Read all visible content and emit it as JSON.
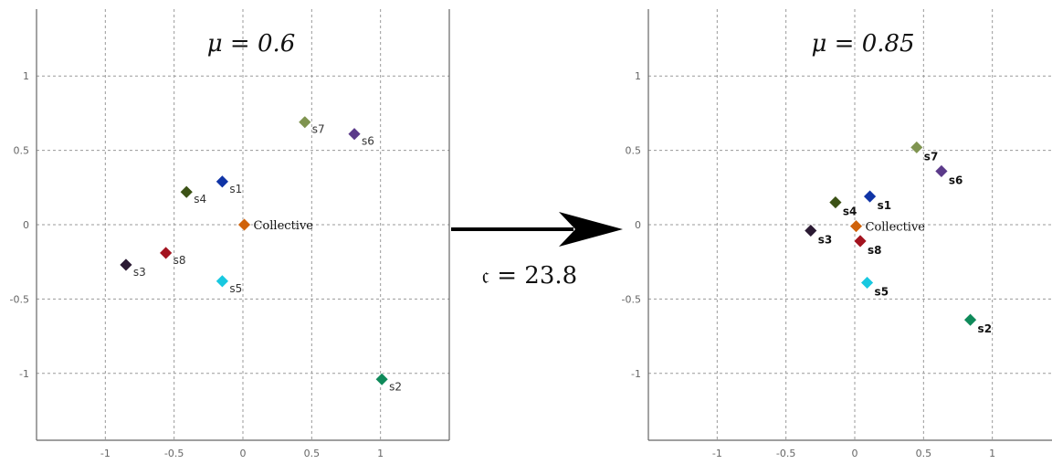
{
  "chart_data": [
    {
      "type": "scatter",
      "title": "μ = 0.6",
      "xlabel": "",
      "ylabel": "",
      "xlim": [
        -1.5,
        1.5
      ],
      "ylim": [
        -1.45,
        1.45
      ],
      "x_ticks": [
        -1,
        -0.5,
        0,
        0.5,
        1
      ],
      "y_ticks": [
        1,
        0.5,
        0,
        -0.5,
        -1
      ],
      "x_tick_labels": [
        "-1",
        "-0.5",
        "0",
        "0.5",
        "1"
      ],
      "y_tick_labels": [
        "1",
        "0.5",
        "0",
        "-0.5",
        "-1"
      ],
      "grid": true,
      "points": [
        {
          "label": "s1",
          "x": -0.15,
          "y": 0.29,
          "color": "#1034a6"
        },
        {
          "label": "s2",
          "x": 1.01,
          "y": -1.04,
          "color": "#0f8a5a"
        },
        {
          "label": "s3",
          "x": -0.85,
          "y": -0.27,
          "color": "#2b1a33"
        },
        {
          "label": "s4",
          "x": -0.41,
          "y": 0.22,
          "color": "#3c5216"
        },
        {
          "label": "s5",
          "x": -0.15,
          "y": -0.38,
          "color": "#18c8e0"
        },
        {
          "label": "s6",
          "x": 0.81,
          "y": 0.61,
          "color": "#5b3a8a"
        },
        {
          "label": "s7",
          "x": 0.45,
          "y": 0.69,
          "color": "#7f9450"
        },
        {
          "label": "s8",
          "x": -0.56,
          "y": -0.19,
          "color": "#a3131f"
        },
        {
          "label": "Collective",
          "x": 0.01,
          "y": 0.0,
          "color": "#d0620a"
        }
      ]
    },
    {
      "type": "scatter",
      "title": "μ = 0.85",
      "xlabel": "",
      "ylabel": "",
      "xlim": [
        -1.5,
        1.5
      ],
      "ylim": [
        -1.45,
        1.45
      ],
      "x_ticks": [
        -1,
        -0.5,
        0,
        0.5,
        1
      ],
      "y_ticks": [
        1,
        0.5,
        0,
        -0.5,
        -1
      ],
      "x_tick_labels": [
        "-1",
        "-0.5",
        "0",
        "0.5",
        "1"
      ],
      "y_tick_labels": [
        "1",
        "0.5",
        "0",
        "-0.5",
        "-1"
      ],
      "grid": true,
      "points": [
        {
          "label": "s1",
          "x": 0.11,
          "y": 0.19,
          "color": "#1034a6"
        },
        {
          "label": "s2",
          "x": 0.84,
          "y": -0.64,
          "color": "#0f8a5a"
        },
        {
          "label": "s3",
          "x": -0.32,
          "y": -0.04,
          "color": "#2b1a33"
        },
        {
          "label": "s4",
          "x": -0.14,
          "y": 0.15,
          "color": "#3c5216"
        },
        {
          "label": "s5",
          "x": 0.09,
          "y": -0.39,
          "color": "#18c8e0"
        },
        {
          "label": "s6",
          "x": 0.63,
          "y": 0.36,
          "color": "#5b3a8a"
        },
        {
          "label": "s7",
          "x": 0.45,
          "y": 0.52,
          "color": "#7f9450"
        },
        {
          "label": "s8",
          "x": 0.04,
          "y": -0.11,
          "color": "#a3131f"
        },
        {
          "label": "Collective",
          "x": 0.01,
          "y": -0.01,
          "color": "#d0620a"
        }
      ]
    }
  ],
  "transition": {
    "label": "𝔠 = 23.8"
  }
}
